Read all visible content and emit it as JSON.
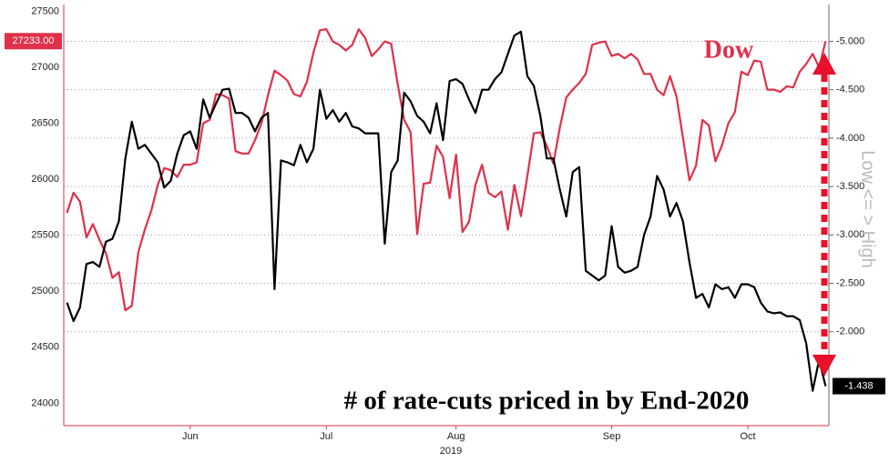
{
  "chart_data": {
    "type": "line",
    "annotations": [
      "Dow",
      "# of rate-cuts priced in by End-2020"
    ],
    "y2label": "Low <= > High",
    "xlabel": "2019",
    "categories": [
      null,
      null,
      null,
      null,
      null,
      null,
      null,
      null,
      null,
      null,
      null,
      null,
      null,
      null,
      null,
      null,
      null,
      null,
      null,
      null,
      null,
      null,
      null,
      null,
      null,
      null,
      null,
      null,
      null,
      null,
      null,
      null,
      null,
      null,
      null,
      null,
      null,
      null,
      null,
      null,
      null,
      null,
      null,
      null,
      null,
      null,
      null,
      null,
      null,
      null,
      null,
      null,
      null,
      null,
      null,
      null,
      null,
      null,
      null,
      null,
      null,
      null,
      null,
      null,
      null,
      null,
      null,
      null,
      null,
      null,
      null,
      null,
      null,
      null,
      null,
      null,
      null,
      null,
      null,
      null,
      null,
      null,
      null,
      null,
      null,
      null,
      null,
      null,
      null,
      null,
      null,
      null,
      null,
      null,
      null,
      null,
      null,
      null,
      null,
      null,
      null,
      null,
      null,
      null,
      null,
      null,
      null,
      null,
      null,
      null,
      null,
      null,
      null,
      null,
      null,
      null,
      null,
      null
    ],
    "xticks": [
      {
        "value": 19,
        "label": "Jun"
      },
      {
        "value": 40,
        "label": "Jul"
      },
      {
        "value": 60,
        "label": "Aug"
      },
      {
        "value": 84,
        "label": "Sep"
      },
      {
        "value": 105,
        "label": "Oct"
      }
    ],
    "ylim": [
      23800,
      27560
    ],
    "yticks": [
      24000,
      24500,
      25000,
      25500,
      26000,
      26500,
      27000,
      27500
    ],
    "y2lim": [
      -1.03,
      -5.38
    ],
    "y2ticks": [
      {
        "value": -5,
        "label": "-5.000"
      },
      {
        "value": -4.5,
        "label": "-4.500"
      },
      {
        "value": -4,
        "label": "-4.000"
      },
      {
        "value": -3.5,
        "label": "-3.500"
      },
      {
        "value": -3,
        "label": "-3.000"
      },
      {
        "value": -2.5,
        "label": "-2.500"
      },
      {
        "value": -2,
        "label": "-2.000"
      }
    ],
    "grid": true,
    "series": [
      {
        "name": "Dow",
        "color": "#e0304a",
        "values": [
          25700,
          25880,
          25800,
          25480,
          25600,
          25460,
          25340,
          25120,
          25170,
          24830,
          24870,
          25350,
          25550,
          25720,
          25950,
          26100,
          26080,
          26020,
          26130,
          26130,
          26150,
          26500,
          26530,
          26760,
          26750,
          26720,
          26250,
          26230,
          26230,
          26350,
          26500,
          26750,
          26970,
          26930,
          26880,
          26760,
          26740,
          26870,
          27130,
          27330,
          27340,
          27230,
          27200,
          27150,
          27200,
          27340,
          27260,
          27100,
          27160,
          27230,
          27210,
          26850,
          26530,
          26420,
          25510,
          25960,
          25970,
          26300,
          26200,
          25830,
          26220,
          25530,
          25620,
          25950,
          26130,
          25880,
          25840,
          25890,
          25550,
          25950,
          25670,
          26030,
          26410,
          26420,
          26300,
          26140,
          26460,
          26730,
          26800,
          26860,
          26940,
          27200,
          27220,
          27230,
          27100,
          27120,
          27080,
          27120,
          27070,
          26940,
          26940,
          26800,
          26750,
          26920,
          26740,
          26370,
          25990,
          26120,
          26530,
          26480,
          26160,
          26300,
          26500,
          26600,
          26960,
          26930,
          27060,
          27050,
          26800,
          26800,
          26780,
          26830,
          26820,
          26960,
          27030,
          27120,
          27000,
          27233
        ],
        "value_labels": {
          "117": "27233.00"
        }
      },
      {
        "name": "# of rate-cuts priced in by End-2020",
        "color": "#000000",
        "axis": "y2",
        "values": [
          -2.3,
          -2.11,
          -2.25,
          -2.7,
          -2.72,
          -2.67,
          -2.93,
          -2.96,
          -3.14,
          -3.79,
          -4.17,
          -3.89,
          -3.93,
          -3.84,
          -3.75,
          -3.49,
          -3.56,
          -3.84,
          -4.03,
          -4.07,
          -3.89,
          -4.4,
          -4.21,
          -4.36,
          -4.5,
          -4.51,
          -4.26,
          -4.26,
          -4.21,
          -4.07,
          -4.21,
          -4.26,
          -2.44,
          -3.77,
          -3.75,
          -3.72,
          -3.93,
          -3.75,
          -3.89,
          -4.5,
          -4.2,
          -4.29,
          -4.17,
          -4.26,
          -4.12,
          -4.1,
          -4.05,
          -4.05,
          -4.05,
          -2.91,
          -3.65,
          -3.77,
          -4.47,
          -4.38,
          -4.23,
          -4.17,
          -4.05,
          -4.36,
          -3.98,
          -4.59,
          -4.61,
          -4.56,
          -4.4,
          -4.26,
          -4.5,
          -4.5,
          -4.61,
          -4.68,
          -4.87,
          -5.06,
          -5.1,
          -4.64,
          -4.54,
          -4.23,
          -3.79,
          -3.79,
          -3.47,
          -3.19,
          -3.65,
          -3.7,
          -2.63,
          -2.58,
          -2.53,
          -2.58,
          -3.09,
          -2.67,
          -2.61,
          -2.63,
          -2.67,
          -3.0,
          -3.19,
          -3.61,
          -3.47,
          -3.19,
          -3.33,
          -3.14,
          -2.72,
          -2.35,
          -2.39,
          -2.25,
          -2.49,
          -2.44,
          -2.46,
          -2.35,
          -2.49,
          -2.49,
          -2.46,
          -2.3,
          -2.21,
          -2.19,
          -2.2,
          -2.16,
          -2.16,
          -2.12,
          -1.88,
          -1.39,
          -1.71,
          -1.438
        ],
        "value_labels": {
          "117": "-1.438"
        }
      }
    ]
  }
}
